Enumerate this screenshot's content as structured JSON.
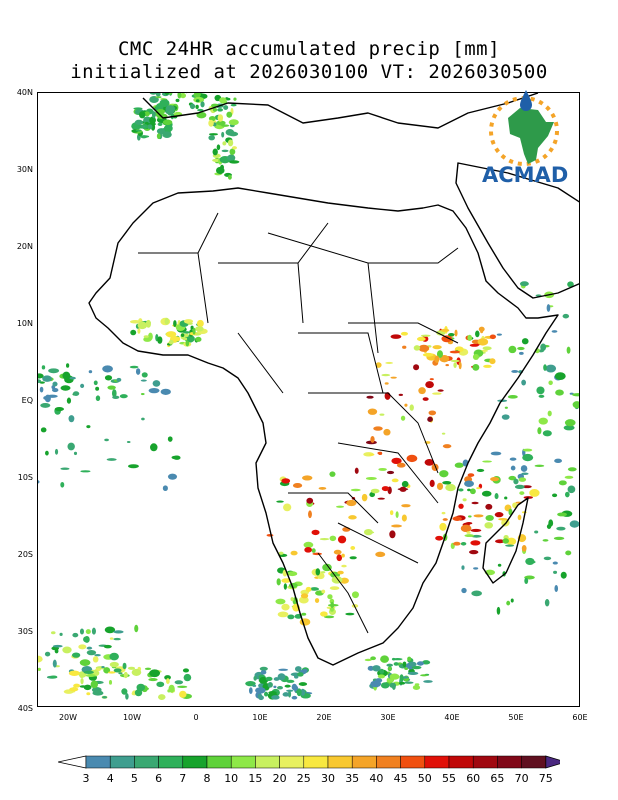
{
  "title": {
    "line1": "CMC 24HR accumulated precip [mm]",
    "line2": "initialized at 2026030100  VT: 2026030500"
  },
  "lat_ticks": [
    "40N",
    "30N",
    "20N",
    "10N",
    "EQ",
    "10S",
    "20S",
    "30S",
    "40S"
  ],
  "lon_ticks": [
    "20W",
    "10W",
    "0",
    "10E",
    "20E",
    "30E",
    "40E",
    "50E",
    "60E"
  ],
  "colorbar": {
    "labels": [
      "3",
      "4",
      "5",
      "6",
      "7",
      "8",
      "10",
      "15",
      "20",
      "25",
      "30",
      "35",
      "40",
      "45",
      "50",
      "55",
      "60",
      "65",
      "70",
      "75"
    ],
    "colors": [
      "#4a8ab0",
      "#3f9e8f",
      "#3aa872",
      "#2fb05a",
      "#17a32c",
      "#5fd23a",
      "#8ee848",
      "#c8f060",
      "#e8f060",
      "#f8e840",
      "#f8c830",
      "#f4a428",
      "#f08020",
      "#f05010",
      "#e01008",
      "#c00808",
      "#a00810",
      "#800818",
      "#601020"
    ],
    "under_color": "#ffffff",
    "over_color": "#4a2880"
  },
  "logo": {
    "text": "ACMAD"
  },
  "map": {
    "extent_lon": [
      -25,
      60
    ],
    "extent_lat": [
      -40,
      40
    ],
    "projection": "cylindrical equidistant"
  }
}
